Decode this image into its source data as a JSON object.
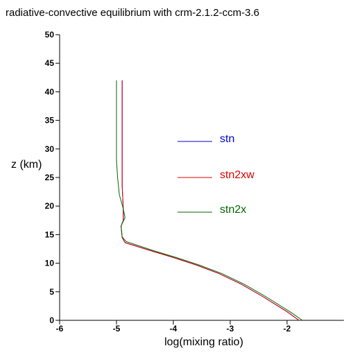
{
  "chart_data": {
    "type": "line",
    "title": "radiative-convective equilibrium with crm-2.1.2-ccm-3.6",
    "xlabel": "log(mixing ratio)",
    "ylabel": "z (km)",
    "xlim": [
      -6,
      -1
    ],
    "ylim": [
      0,
      50
    ],
    "x_ticks": [
      -6,
      -5,
      -4,
      -3,
      -2
    ],
    "y_ticks": [
      0,
      5,
      10,
      15,
      20,
      25,
      30,
      35,
      40,
      45,
      50
    ],
    "grid": false,
    "legend_placement": "center-right",
    "series": [
      {
        "name": "stn",
        "color": "#0000cc",
        "points": [
          [
            -1.79,
            0
          ],
          [
            -2.0,
            1.5
          ],
          [
            -2.4,
            4
          ],
          [
            -2.8,
            6.3
          ],
          [
            -3.2,
            8.2
          ],
          [
            -3.6,
            9.7
          ],
          [
            -4.0,
            11.0
          ],
          [
            -4.4,
            12.2
          ],
          [
            -4.85,
            13.6
          ],
          [
            -4.9,
            14.5
          ],
          [
            -4.92,
            16.5
          ],
          [
            -4.88,
            17.5
          ],
          [
            -4.88,
            19.5
          ],
          [
            -4.9,
            23.5
          ],
          [
            -4.9,
            42
          ]
        ]
      },
      {
        "name": "stn2xw",
        "color": "#dd0000",
        "points": [
          [
            -1.79,
            0
          ],
          [
            -2.0,
            1.5
          ],
          [
            -2.4,
            4
          ],
          [
            -2.8,
            6.3
          ],
          [
            -3.2,
            8.2
          ],
          [
            -3.6,
            9.7
          ],
          [
            -4.0,
            11.0
          ],
          [
            -4.4,
            12.2
          ],
          [
            -4.85,
            13.6
          ],
          [
            -4.9,
            14.5
          ],
          [
            -4.92,
            16.5
          ],
          [
            -4.88,
            17.5
          ],
          [
            -4.88,
            19.5
          ],
          [
            -4.9,
            23.5
          ],
          [
            -4.9,
            42
          ]
        ]
      },
      {
        "name": "stn2x",
        "color": "#006600",
        "points": [
          [
            -1.73,
            0
          ],
          [
            -1.95,
            1.5
          ],
          [
            -2.35,
            4
          ],
          [
            -2.75,
            6.3
          ],
          [
            -3.15,
            8.2
          ],
          [
            -3.55,
            9.7
          ],
          [
            -3.95,
            11.0
          ],
          [
            -4.35,
            12.2
          ],
          [
            -4.83,
            13.8
          ],
          [
            -4.9,
            14.6
          ],
          [
            -4.92,
            16.5
          ],
          [
            -4.85,
            18
          ],
          [
            -4.88,
            19.5
          ],
          [
            -4.95,
            22
          ],
          [
            -4.98,
            25
          ],
          [
            -5.0,
            28
          ],
          [
            -5.0,
            42
          ]
        ]
      }
    ]
  }
}
